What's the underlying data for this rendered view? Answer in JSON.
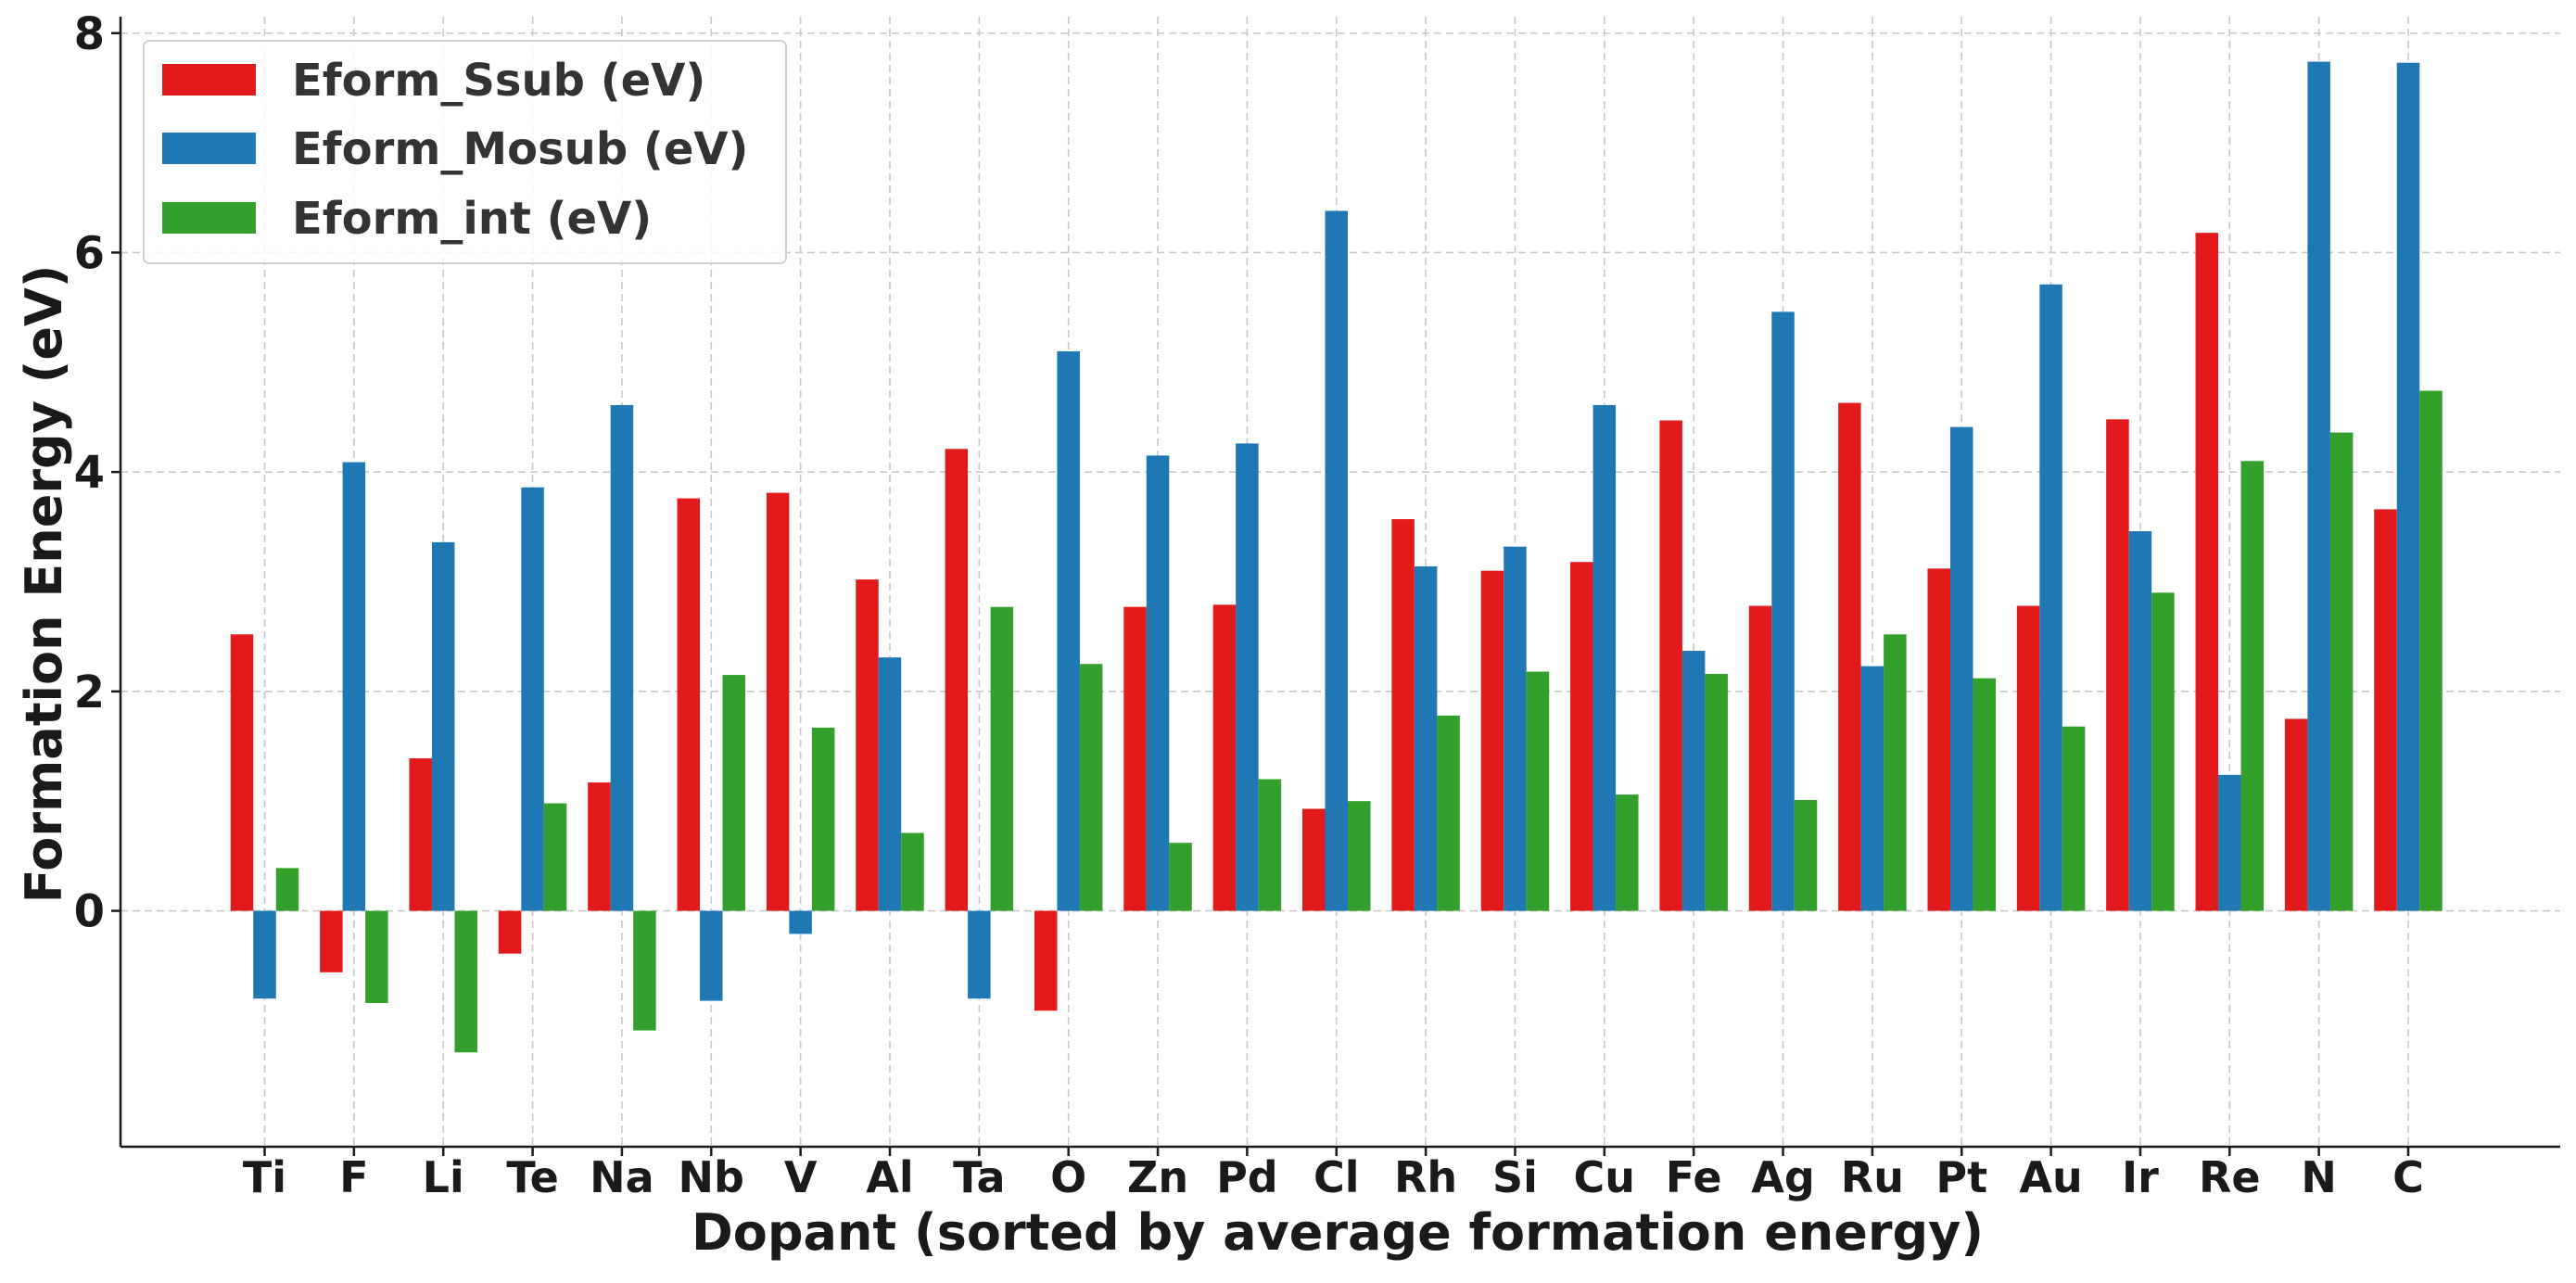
{
  "chart_data": {
    "type": "bar",
    "title": "",
    "xlabel": "Dopant (sorted by average formation energy)",
    "ylabel": "Formation Energy (eV)",
    "ylim": [
      -2.15,
      8.15
    ],
    "yticks": [
      0,
      2,
      4,
      6,
      8
    ],
    "grid": true,
    "legend_position": "top-left",
    "categories": [
      "Ti",
      "F",
      "Li",
      "Te",
      "Na",
      "Nb",
      "V",
      "Al",
      "Ta",
      "O",
      "Zn",
      "Pd",
      "Cl",
      "Rh",
      "Si",
      "Cu",
      "Fe",
      "Ag",
      "Ru",
      "Pt",
      "Au",
      "Ir",
      "Re",
      "N",
      "C"
    ],
    "series": [
      {
        "name": "Eform_Ssub (eV)",
        "color": "#e31a1c",
        "values": [
          2.52,
          -0.56,
          1.39,
          -0.39,
          1.17,
          3.76,
          3.81,
          3.02,
          4.21,
          -0.91,
          2.77,
          2.79,
          0.93,
          3.57,
          3.1,
          3.18,
          4.47,
          2.78,
          4.63,
          3.12,
          2.78,
          4.48,
          6.18,
          1.75,
          3.66
        ]
      },
      {
        "name": "Eform_Mosub (eV)",
        "color": "#1f78b4",
        "values": [
          -0.8,
          4.09,
          3.36,
          3.86,
          4.61,
          -0.82,
          -0.21,
          2.31,
          -0.8,
          5.1,
          4.15,
          4.26,
          6.38,
          3.14,
          3.32,
          4.61,
          2.37,
          5.46,
          2.23,
          4.41,
          5.71,
          3.46,
          1.24,
          7.74,
          7.73
        ]
      },
      {
        "name": "Eform_int (eV)",
        "color": "#33a02c",
        "values": [
          0.39,
          -0.84,
          -1.29,
          0.98,
          -1.09,
          2.15,
          1.67,
          0.71,
          2.77,
          2.25,
          0.62,
          1.2,
          1.0,
          1.78,
          2.18,
          1.06,
          2.16,
          1.01,
          2.52,
          2.12,
          1.68,
          2.9,
          4.1,
          4.36,
          4.74
        ]
      }
    ]
  }
}
